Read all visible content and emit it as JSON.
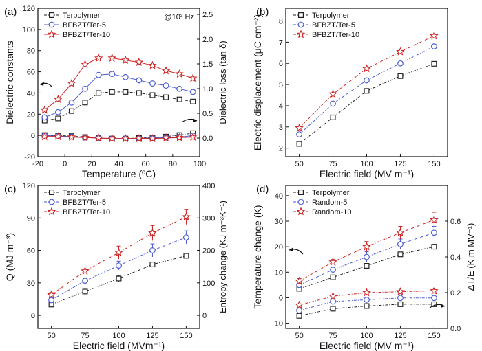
{
  "figure": {
    "colors": {
      "black": "#222222",
      "blue": "#4a5bd0",
      "red": "#cc2222",
      "axis": "#111111"
    }
  },
  "chart_data": [
    {
      "id": "a",
      "panel_label": "(a)",
      "type": "line",
      "annotation": "@10³ Hz",
      "xlabel": "Temperature (ºC)",
      "ylabel": "Dielectric constants",
      "y2label": "Dielectric loss (tan δ)",
      "xlim": [
        -20,
        100
      ],
      "ylim": [
        -20,
        120
      ],
      "y2lim": [
        -0.375,
        2.625
      ],
      "xticks": [
        -20,
        0,
        20,
        40,
        60,
        80,
        100
      ],
      "yticks": [
        -20,
        0,
        20,
        40,
        60,
        80,
        100,
        120
      ],
      "y2ticks": [
        0.0,
        0.5,
        1.0,
        1.5,
        2.0,
        2.5
      ],
      "legend_position": "top-left",
      "x": [
        -15,
        -5,
        5,
        15,
        25,
        35,
        45,
        55,
        65,
        75,
        85,
        95
      ],
      "series": [
        {
          "name": "Terpolymer",
          "color_key": "black",
          "marker": "square",
          "dash": "4,2,1,2",
          "values": [
            14,
            16,
            23,
            31,
            40,
            41,
            41,
            40,
            38,
            36,
            34,
            32
          ]
        },
        {
          "name": "BFBZT/Ter-5",
          "color_key": "blue",
          "marker": "circle",
          "dash": "",
          "values": [
            17,
            22,
            31,
            44,
            57,
            58,
            55,
            52,
            49,
            47,
            44,
            41
          ]
        },
        {
          "name": "BFBZT/Ter-10",
          "color_key": "red",
          "marker": "star",
          "dash": "",
          "values": [
            24,
            34,
            49,
            67,
            73,
            73,
            71,
            69,
            66,
            61,
            58,
            54
          ]
        }
      ],
      "series_right": [
        {
          "name": "Terpolymer",
          "color_key": "black",
          "marker": "square",
          "dash": "4,2,1,2",
          "values": [
            0.06,
            0.05,
            0.04,
            0.02,
            0.0,
            -0.01,
            -0.01,
            0.0,
            0.01,
            0.03,
            0.06,
            0.1
          ]
        },
        {
          "name": "BFBZT/Ter-5",
          "color_key": "blue",
          "marker": "circle",
          "dash": "",
          "values": [
            0.05,
            0.04,
            0.03,
            0.01,
            0.0,
            -0.01,
            -0.01,
            -0.01,
            0.0,
            0.01,
            0.02,
            0.05
          ]
        },
        {
          "name": "BFBZT/Ter-10",
          "color_key": "red",
          "marker": "star",
          "dash": "",
          "values": [
            0.03,
            0.03,
            0.02,
            0.01,
            0.0,
            -0.01,
            -0.01,
            -0.01,
            -0.01,
            0.0,
            0.01,
            0.02
          ]
        }
      ]
    },
    {
      "id": "b",
      "panel_label": "(b)",
      "type": "line",
      "xlabel": "Electric field (MV m⁻¹)",
      "ylabel": "Electric displacement (μC cm⁻²)",
      "xlim": [
        40,
        160
      ],
      "ylim": [
        1.6,
        8.6
      ],
      "xticks": [
        50,
        75,
        100,
        125,
        150
      ],
      "yticks": [
        2,
        3,
        4,
        5,
        6,
        7,
        8
      ],
      "legend_position": "top-left",
      "x": [
        50,
        75,
        100,
        125,
        150
      ],
      "series": [
        {
          "name": "Terpolymer",
          "color_key": "black",
          "marker": "square",
          "dash": "4,2,1,2",
          "values": [
            2.2,
            3.45,
            4.7,
            5.4,
            5.98
          ]
        },
        {
          "name": "BFBZT/Ter-5",
          "color_key": "blue",
          "marker": "circle",
          "dash": "4,2,1,2",
          "values": [
            2.65,
            4.1,
            5.2,
            6.0,
            6.8
          ]
        },
        {
          "name": "BFBZT/Ter-10",
          "color_key": "red",
          "marker": "star",
          "dash": "4,2,1,2",
          "values": [
            2.95,
            4.55,
            5.75,
            6.55,
            7.3
          ]
        }
      ]
    },
    {
      "id": "c",
      "panel_label": "(c)",
      "type": "scatter",
      "xlabel": "Electric field (MVm⁻¹)",
      "ylabel": "Q (MJ m⁻³)",
      "y2label": "Entropy change (KJ m⁻³K⁻¹)",
      "xlim": [
        40,
        160
      ],
      "ylim": [
        -12,
        120
      ],
      "y2lim": [
        -40,
        400
      ],
      "xticks": [
        50,
        75,
        100,
        125,
        150
      ],
      "yticks": [
        0,
        30,
        60,
        90,
        120
      ],
      "y2ticks": [
        0,
        100,
        200,
        300,
        400
      ],
      "legend_position": "top-left",
      "x": [
        50,
        75,
        100,
        125,
        150
      ],
      "series": [
        {
          "name": "Terpolymer",
          "color_key": "black",
          "marker": "square",
          "dash": "4,2,1,2",
          "values": [
            10,
            22,
            34,
            47,
            55
          ],
          "errors": [
            1,
            1,
            3,
            1,
            1
          ]
        },
        {
          "name": "BFBZT/Ter-5",
          "color_key": "blue",
          "marker": "circle",
          "dash": "4,2,1,2",
          "values": [
            14,
            32,
            46,
            60,
            72
          ],
          "errors": [
            2,
            2,
            4,
            6,
            6
          ]
        },
        {
          "name": "BFBZT/Ter-10",
          "color_key": "red",
          "marker": "star",
          "dash": "4,2,1,2",
          "values": [
            19,
            41,
            58,
            76,
            91
          ],
          "errors": [
            2,
            2,
            6,
            7,
            7
          ]
        }
      ]
    },
    {
      "id": "d",
      "panel_label": "(d)",
      "type": "scatter",
      "xlabel": "Electric field (MV m⁻¹)",
      "ylabel": "Temperature change (K)",
      "y2label": "ΔT/E (K m MV⁻¹)",
      "xlim": [
        40,
        160
      ],
      "ylim": [
        -12,
        44
      ],
      "y2lim": [
        0.0,
        0.8
      ],
      "xticks": [
        50,
        75,
        100,
        125,
        150
      ],
      "yticks": [
        -10,
        0,
        10,
        20,
        30,
        40
      ],
      "y2ticks": [
        0.0,
        0.2,
        0.4,
        0.6
      ],
      "legend_position": "top-left",
      "x": [
        50,
        75,
        100,
        125,
        150
      ],
      "series": [
        {
          "name": "Terpolymer",
          "color_key": "black",
          "marker": "square",
          "dash": "4,2,1,2",
          "values": [
            3.5,
            8,
            12.5,
            17,
            20
          ],
          "errors": [
            0.5,
            0.5,
            0.8,
            0.6,
            0.8
          ]
        },
        {
          "name": "Random-5",
          "color_key": "blue",
          "marker": "circle",
          "dash": "4,2,1,2",
          "values": [
            5,
            11,
            16,
            21,
            25.5
          ],
          "errors": [
            1,
            1,
            2,
            2,
            2.5
          ]
        },
        {
          "name": "Random-10",
          "color_key": "red",
          "marker": "star",
          "dash": "4,2,1,2",
          "values": [
            6.5,
            14,
            20,
            25.5,
            30.5
          ],
          "errors": [
            1,
            1,
            2,
            2.5,
            3
          ]
        }
      ],
      "series_right": [
        {
          "name": "Terpolymer",
          "color_key": "black",
          "marker": "square",
          "dash": "4,2,1,2",
          "values": [
            0.07,
            0.11,
            0.125,
            0.135,
            0.135
          ]
        },
        {
          "name": "Random-5",
          "color_key": "blue",
          "marker": "circle",
          "dash": "4,2,1,2",
          "values": [
            0.1,
            0.15,
            0.16,
            0.17,
            0.17
          ]
        },
        {
          "name": "Random-10",
          "color_key": "red",
          "marker": "star",
          "dash": "4,2,1,2",
          "values": [
            0.13,
            0.18,
            0.2,
            0.205,
            0.21
          ]
        }
      ]
    }
  ]
}
